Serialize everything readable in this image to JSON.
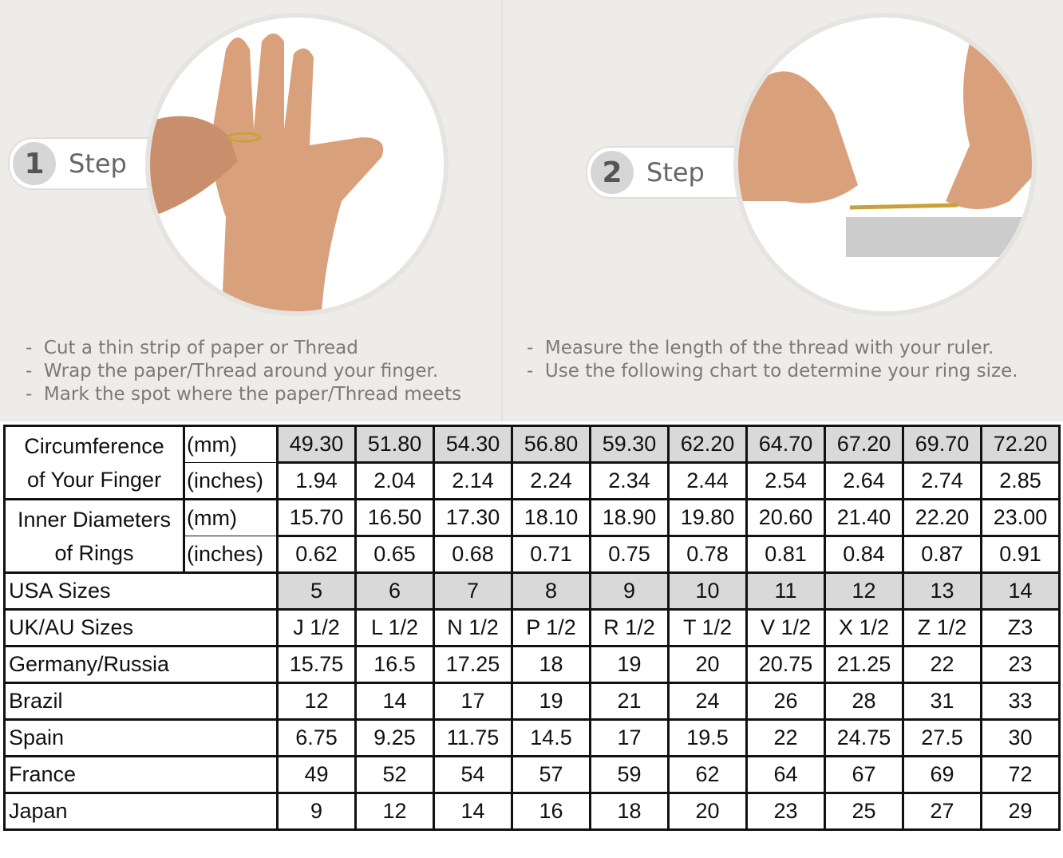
{
  "steps": [
    {
      "number": "1",
      "label": "Step",
      "instructions": [
        "Cut a thin strip of paper or Thread",
        "Wrap the paper/Thread around your finger.",
        "Mark the spot where the paper/Thread meets"
      ]
    },
    {
      "number": "2",
      "label": "Step",
      "instructions": [
        "Measure the length of the thread with your ruler.",
        "Use the following chart to determine your ring size."
      ]
    }
  ],
  "table": {
    "circumference": {
      "label_line1": "Circumference",
      "label_line2": "of Your Finger",
      "unit_mm": "(mm)",
      "unit_in": "(inches)",
      "mm": [
        "49.30",
        "51.80",
        "54.30",
        "56.80",
        "59.30",
        "62.20",
        "64.70",
        "67.20",
        "69.70",
        "72.20"
      ],
      "inches": [
        "1.94",
        "2.04",
        "2.14",
        "2.24",
        "2.34",
        "2.44",
        "2.54",
        "2.64",
        "2.74",
        "2.85"
      ]
    },
    "diameter": {
      "label_line1": "Inner Diameters",
      "label_line2": "of Rings",
      "unit_mm": "(mm)",
      "unit_in": "(inches)",
      "mm": [
        "15.70",
        "16.50",
        "17.30",
        "18.10",
        "18.90",
        "19.80",
        "20.60",
        "21.40",
        "22.20",
        "23.00"
      ],
      "inches": [
        "0.62",
        "0.65",
        "0.68",
        "0.71",
        "0.75",
        "0.78",
        "0.81",
        "0.84",
        "0.87",
        "0.91"
      ]
    },
    "rows": [
      {
        "label": "USA Sizes",
        "highlight": true,
        "values": [
          "5",
          "6",
          "7",
          "8",
          "9",
          "10",
          "11",
          "12",
          "13",
          "14"
        ]
      },
      {
        "label": "UK/AU Sizes",
        "values": [
          "J 1/2",
          "L 1/2",
          "N 1/2",
          "P 1/2",
          "R 1/2",
          "T 1/2",
          "V 1/2",
          "X 1/2",
          "Z 1/2",
          "Z3"
        ]
      },
      {
        "label": "Germany/Russia",
        "values": [
          "15.75",
          "16.5",
          "17.25",
          "18",
          "19",
          "20",
          "20.75",
          "21.25",
          "22",
          "23"
        ]
      },
      {
        "label": "Brazil",
        "values": [
          "12",
          "14",
          "17",
          "19",
          "21",
          "24",
          "26",
          "28",
          "31",
          "33"
        ]
      },
      {
        "label": "Spain",
        "values": [
          "6.75",
          "9.25",
          "11.75",
          "14.5",
          "17",
          "19.5",
          "22",
          "24.75",
          "27.5",
          "30"
        ]
      },
      {
        "label": "France",
        "values": [
          "49",
          "52",
          "54",
          "57",
          "59",
          "62",
          "64",
          "67",
          "69",
          "72"
        ]
      },
      {
        "label": "Japan",
        "values": [
          "9",
          "12",
          "14",
          "16",
          "18",
          "20",
          "23",
          "25",
          "27",
          "29"
        ]
      }
    ]
  },
  "colors": {
    "highlight": "#d9d9d9",
    "panel": "#eeece9",
    "skin": "#d9a07c"
  }
}
